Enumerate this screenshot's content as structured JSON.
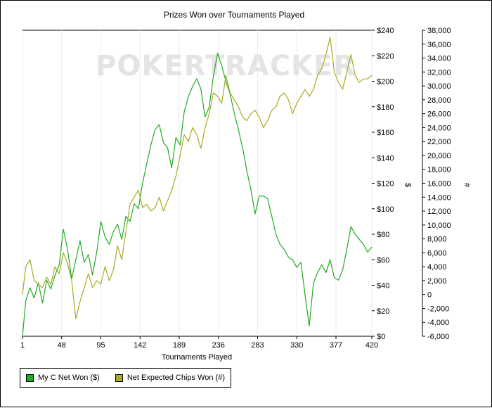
{
  "chart_data": {
    "type": "line",
    "title": "Prizes Won over Tournaments Played",
    "xlabel": "Tournaments Played",
    "ylabel": "$",
    "y2label": "#",
    "watermark": "POKERTRACKER",
    "xlim": [
      1,
      420
    ],
    "ylim": [
      0,
      240
    ],
    "y2lim": [
      -6000,
      38000
    ],
    "x_ticks": [
      "1",
      "48",
      "95",
      "142",
      "189",
      "236",
      "283",
      "330",
      "377",
      "420"
    ],
    "x_tick_values": [
      1,
      48,
      95,
      142,
      189,
      236,
      283,
      330,
      377,
      420
    ],
    "y_ticks": [
      "$0",
      "$20",
      "$40",
      "$60",
      "$80",
      "$100",
      "$120",
      "$140",
      "$160",
      "$180",
      "$200",
      "$220",
      "$240"
    ],
    "y_tick_values": [
      0,
      20,
      40,
      60,
      80,
      100,
      120,
      140,
      160,
      180,
      200,
      220,
      240
    ],
    "y2_ticks": [
      "-6,000",
      "-4,000",
      "-2,000",
      "0",
      "2,000",
      "4,000",
      "6,000",
      "8,000",
      "10,000",
      "12,000",
      "14,000",
      "16,000",
      "18,000",
      "20,000",
      "22,000",
      "24,000",
      "26,000",
      "28,000",
      "30,000",
      "32,000",
      "34,000",
      "36,000",
      "38,000"
    ],
    "y2_tick_values": [
      -6000,
      -4000,
      -2000,
      0,
      2000,
      4000,
      6000,
      8000,
      10000,
      12000,
      14000,
      16000,
      18000,
      20000,
      22000,
      24000,
      26000,
      28000,
      30000,
      32000,
      34000,
      36000,
      38000
    ],
    "grid": "vertical",
    "legend_position": "bottom-left",
    "series": [
      {
        "name": "My C Net Won ($)",
        "axis": "left",
        "color": "#22aa22",
        "x": [
          1,
          5,
          10,
          15,
          20,
          25,
          30,
          35,
          40,
          45,
          50,
          55,
          60,
          65,
          70,
          75,
          80,
          85,
          90,
          95,
          100,
          105,
          110,
          115,
          120,
          125,
          130,
          135,
          140,
          145,
          150,
          155,
          160,
          165,
          170,
          175,
          180,
          185,
          190,
          195,
          200,
          205,
          210,
          215,
          220,
          225,
          230,
          235,
          240,
          245,
          250,
          255,
          260,
          265,
          270,
          275,
          280,
          285,
          290,
          295,
          300,
          305,
          310,
          315,
          320,
          325,
          330,
          335,
          340,
          345,
          350,
          355,
          360,
          365,
          370,
          375,
          380,
          385,
          390,
          395,
          400,
          405,
          410,
          415,
          420
        ],
        "values": [
          0,
          28,
          38,
          30,
          42,
          26,
          44,
          37,
          48,
          56,
          84,
          68,
          45,
          60,
          75,
          58,
          64,
          48,
          66,
          90,
          78,
          72,
          82,
          88,
          76,
          94,
          90,
          104,
          100,
          120,
          135,
          150,
          162,
          166,
          152,
          148,
          132,
          156,
          150,
          176,
          188,
          196,
          202,
          194,
          172,
          180,
          204,
          222,
          212,
          200,
          190,
          175,
          162,
          148,
          130,
          115,
          96,
          110,
          110,
          108,
          94,
          80,
          72,
          68,
          62,
          60,
          54,
          58,
          32,
          8,
          42,
          50,
          56,
          50,
          60,
          46,
          44,
          52,
          68,
          86,
          80,
          76,
          72,
          66,
          70
        ]
      },
      {
        "name": "Net Expected Chips Won (#)",
        "axis": "right",
        "color": "#aaaa22",
        "x": [
          1,
          5,
          10,
          15,
          20,
          25,
          30,
          35,
          40,
          45,
          50,
          55,
          60,
          65,
          70,
          75,
          80,
          85,
          90,
          95,
          100,
          105,
          110,
          115,
          120,
          125,
          130,
          135,
          140,
          145,
          150,
          155,
          160,
          165,
          170,
          175,
          180,
          185,
          190,
          195,
          200,
          205,
          210,
          215,
          220,
          225,
          230,
          235,
          240,
          245,
          250,
          255,
          260,
          265,
          270,
          275,
          280,
          285,
          290,
          295,
          300,
          305,
          310,
          315,
          320,
          325,
          330,
          335,
          340,
          345,
          350,
          355,
          360,
          365,
          370,
          375,
          380,
          385,
          390,
          395,
          400,
          405,
          410,
          415,
          420
        ],
        "values": [
          0,
          4000,
          5000,
          2000,
          1500,
          1000,
          2500,
          1500,
          4000,
          3000,
          6000,
          4500,
          2000,
          -3500,
          -1000,
          1000,
          3000,
          1000,
          2000,
          1500,
          4000,
          2000,
          3500,
          7000,
          5000,
          9000,
          13000,
          14000,
          15000,
          12500,
          13000,
          12000,
          12500,
          14000,
          12000,
          13500,
          15000,
          17000,
          20000,
          23000,
          22000,
          24000,
          23000,
          21000,
          24000,
          26000,
          29000,
          28500,
          27500,
          31500,
          29000,
          28000,
          27000,
          25500,
          25000,
          26000,
          26500,
          25500,
          24000,
          25000,
          26500,
          27000,
          28500,
          29000,
          28000,
          26000,
          27500,
          28500,
          29500,
          28500,
          29500,
          31500,
          32500,
          34500,
          37000,
          32000,
          30500,
          29500,
          32000,
          34500,
          31500,
          30500,
          31000,
          31000,
          31500
        ]
      }
    ]
  }
}
